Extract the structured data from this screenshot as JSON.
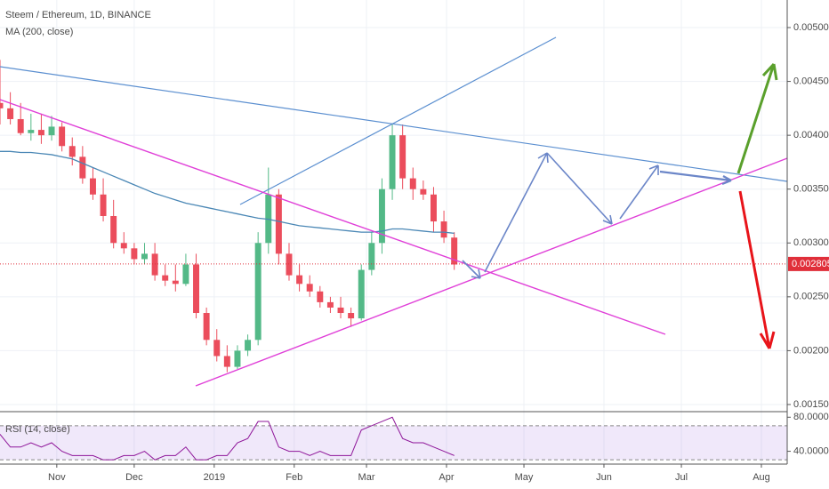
{
  "chart_data": [
    {
      "type": "candlestick",
      "title": "Steem / Ethereum, 1D, BINANCE",
      "up_color": "#53b987",
      "down_color": "#eb4d5c",
      "x": [
        0,
        4,
        8,
        12,
        16,
        20,
        24,
        28,
        32,
        36,
        40,
        44,
        48,
        52,
        56,
        60,
        64,
        68,
        72,
        76,
        80,
        84,
        88,
        92,
        96,
        100,
        104,
        108,
        112,
        116,
        120,
        124,
        128,
        132,
        136,
        140,
        144,
        148,
        152,
        156,
        160,
        164,
        168,
        172,
        176
      ],
      "open": [
        0.0043,
        0.00425,
        0.00415,
        0.00402,
        0.00405,
        0.004,
        0.00408,
        0.0039,
        0.0038,
        0.0036,
        0.00345,
        0.00325,
        0.003,
        0.00295,
        0.00285,
        0.0029,
        0.0027,
        0.00265,
        0.00262,
        0.0028,
        0.00235,
        0.0021,
        0.00195,
        0.00185,
        0.002,
        0.0021,
        0.003,
        0.00345,
        0.0029,
        0.0027,
        0.00262,
        0.00255,
        0.00245,
        0.0024,
        0.00235,
        0.0023,
        0.00275,
        0.003,
        0.0035,
        0.004,
        0.0036,
        0.0035,
        0.00345,
        0.0032,
        0.00305
      ],
      "high": [
        0.0047,
        0.0044,
        0.0043,
        0.0042,
        0.0042,
        0.00418,
        0.00412,
        0.00398,
        0.0039,
        0.0037,
        0.0036,
        0.0034,
        0.0031,
        0.003,
        0.003,
        0.003,
        0.0028,
        0.0028,
        0.0029,
        0.0029,
        0.0024,
        0.0022,
        0.00205,
        0.00205,
        0.00215,
        0.0031,
        0.0037,
        0.0035,
        0.003,
        0.0028,
        0.0027,
        0.0026,
        0.0025,
        0.0025,
        0.0024,
        0.0028,
        0.0031,
        0.0036,
        0.0041,
        0.0041,
        0.0037,
        0.00358,
        0.00352,
        0.0033,
        0.0031
      ],
      "low": [
        0.0041,
        0.0041,
        0.004,
        0.00395,
        0.00392,
        0.00395,
        0.00385,
        0.00372,
        0.00355,
        0.0034,
        0.0032,
        0.00295,
        0.0029,
        0.0028,
        0.0028,
        0.00265,
        0.0026,
        0.00255,
        0.0026,
        0.0023,
        0.00205,
        0.0019,
        0.0018,
        0.00183,
        0.00195,
        0.00205,
        0.0029,
        0.0028,
        0.00265,
        0.00255,
        0.0025,
        0.0024,
        0.00235,
        0.0023,
        0.00222,
        0.00228,
        0.0027,
        0.0029,
        0.0034,
        0.0035,
        0.0034,
        0.0034,
        0.0031,
        0.003,
        0.00275
      ],
      "close": [
        0.00425,
        0.00415,
        0.00402,
        0.00405,
        0.004,
        0.00408,
        0.0039,
        0.0038,
        0.0036,
        0.00345,
        0.00325,
        0.003,
        0.00295,
        0.00285,
        0.0029,
        0.0027,
        0.00265,
        0.00262,
        0.0028,
        0.00235,
        0.0021,
        0.00195,
        0.00185,
        0.002,
        0.0021,
        0.003,
        0.00345,
        0.0029,
        0.0027,
        0.00262,
        0.00255,
        0.00245,
        0.0024,
        0.00235,
        0.0023,
        0.00275,
        0.003,
        0.0035,
        0.004,
        0.0036,
        0.0035,
        0.00345,
        0.0032,
        0.00305,
        0.0028
      ],
      "series": [
        {
          "name": "MA (200, close)",
          "color": "#4a87b5",
          "values": [
            0.00385,
            0.00385,
            0.00384,
            0.00384,
            0.00383,
            0.00382,
            0.0038,
            0.00378,
            0.00374,
            0.0037,
            0.00366,
            0.00362,
            0.00358,
            0.00354,
            0.0035,
            0.00346,
            0.00343,
            0.0034,
            0.00337,
            0.00335,
            0.00333,
            0.00331,
            0.00329,
            0.00327,
            0.00325,
            0.00323,
            0.00322,
            0.0032,
            0.00318,
            0.00316,
            0.00315,
            0.00314,
            0.00313,
            0.00312,
            0.00311,
            0.0031,
            0.0031,
            0.00311,
            0.00313,
            0.00313,
            0.00312,
            0.00311,
            0.0031,
            0.0031,
            0.00309
          ]
        }
      ],
      "last_price": 0.002805,
      "last_price_color": "#e02f3a",
      "xlim": [
        0,
        305
      ],
      "xticks": [
        {
          "value": 22,
          "label": "Nov"
        },
        {
          "value": 52,
          "label": "Dec"
        },
        {
          "value": 83,
          "label": "2019"
        },
        {
          "value": 114,
          "label": "Feb"
        },
        {
          "value": 142,
          "label": "Mar"
        },
        {
          "value": 173,
          "label": "Apr"
        },
        {
          "value": 203,
          "label": "May"
        },
        {
          "value": 234,
          "label": "Jun"
        },
        {
          "value": 264,
          "label": "Jul"
        },
        {
          "value": 295,
          "label": "Aug"
        }
      ],
      "ylim": [
        0.001442,
        0.005256
      ],
      "yticks": [
        {
          "value": 0.0015,
          "label": "0.001500"
        },
        {
          "value": 0.002,
          "label": "0.002000"
        },
        {
          "value": 0.0025,
          "label": "0.002500"
        },
        {
          "value": 0.003,
          "label": "0.003000"
        },
        {
          "value": 0.0035,
          "label": "0.003500"
        },
        {
          "value": 0.004,
          "label": "0.004000"
        },
        {
          "value": 0.0045,
          "label": "0.004500"
        },
        {
          "value": 0.005,
          "label": "0.005000"
        }
      ],
      "grid": true
    },
    {
      "type": "line",
      "title": "RSI (14, close)",
      "x": [
        0,
        4,
        8,
        12,
        16,
        20,
        24,
        28,
        32,
        36,
        40,
        44,
        48,
        52,
        56,
        60,
        64,
        68,
        72,
        76,
        80,
        84,
        88,
        92,
        96,
        100,
        104,
        108,
        112,
        116,
        120,
        124,
        128,
        132,
        136,
        140,
        144,
        148,
        152,
        156,
        160,
        164,
        168,
        172,
        176
      ],
      "series": [
        {
          "name": "RSI",
          "color": "#8e1599",
          "values": [
            60,
            45,
            45,
            50,
            45,
            50,
            40,
            35,
            35,
            35,
            30,
            30,
            35,
            35,
            40,
            30,
            35,
            35,
            45,
            30,
            30,
            35,
            35,
            50,
            55,
            75,
            75,
            45,
            40,
            40,
            35,
            40,
            35,
            35,
            35,
            65,
            70,
            75,
            80,
            55,
            50,
            50,
            45,
            40,
            35
          ]
        }
      ],
      "band": [
        30,
        70
      ],
      "band_color": "#9b64dc",
      "xlim": [
        0,
        305
      ],
      "ylim": [
        26,
        85.5
      ],
      "yticks": [
        {
          "value": 40,
          "label": "40.0000"
        },
        {
          "value": 80,
          "label": "80.0000"
        }
      ]
    }
  ]
}
